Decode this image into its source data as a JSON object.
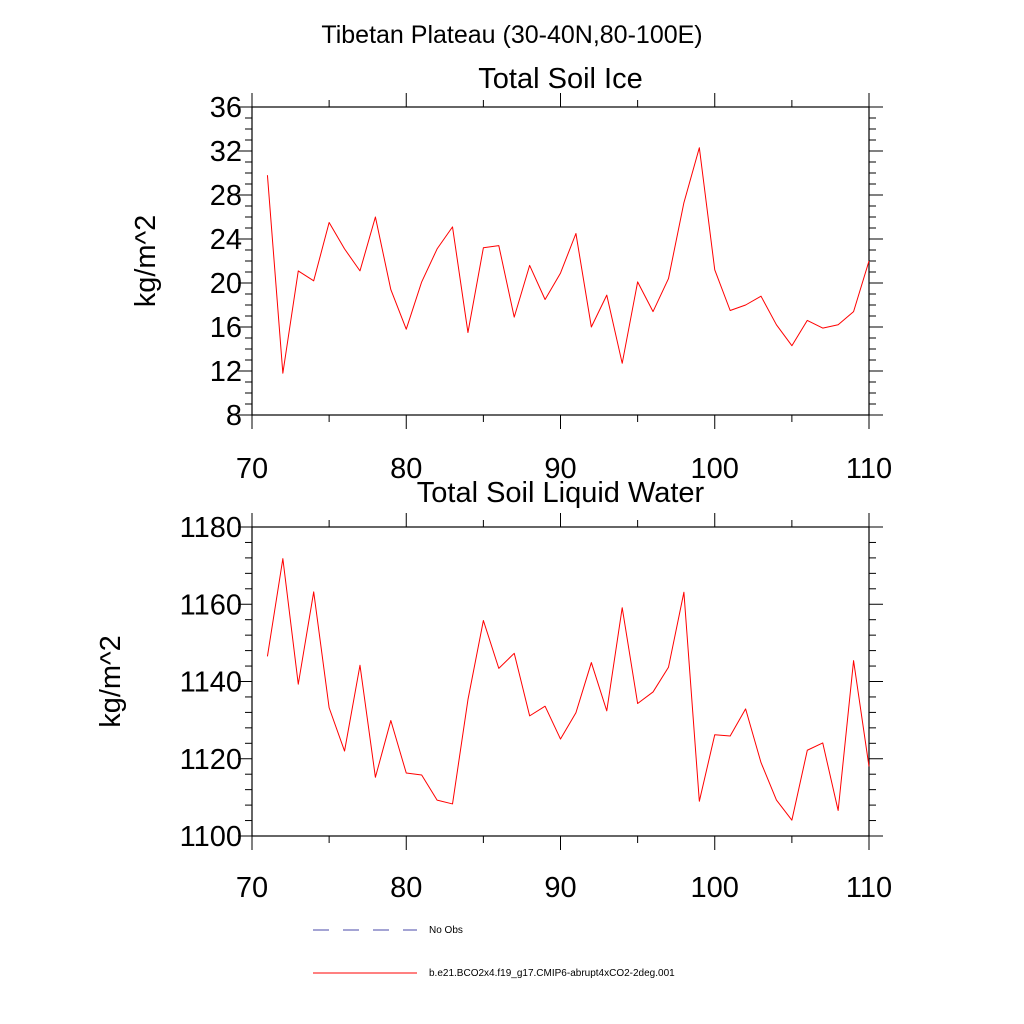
{
  "figure": {
    "title": "Tibetan Plateau (30-40N,80-100E)"
  },
  "chart_data": [
    {
      "type": "line",
      "title": "Total Soil Ice",
      "xlabel": "",
      "ylabel": "kg/m^2",
      "xlim": [
        70,
        110
      ],
      "ylim": [
        8,
        36
      ],
      "xticks": [
        70,
        80,
        90,
        100,
        110
      ],
      "yticks": [
        8,
        12,
        16,
        20,
        24,
        28,
        32,
        36
      ],
      "series": [
        {
          "name": "b.e21.BCO2x4.f19_g17.CMIP6-abrupt4xCO2-2deg.001",
          "color": "#ff0000",
          "x": [
            71,
            72,
            73,
            74,
            75,
            76,
            77,
            78,
            79,
            80,
            81,
            82,
            83,
            84,
            85,
            86,
            87,
            88,
            89,
            90,
            91,
            92,
            93,
            94,
            95,
            96,
            97,
            98,
            99,
            100,
            101,
            102,
            103,
            104,
            105,
            106,
            107,
            108,
            109,
            110
          ],
          "y": [
            29.8,
            11.8,
            21.1,
            20.2,
            25.5,
            23.1,
            21.1,
            26.0,
            19.4,
            15.8,
            20.1,
            23.1,
            25.1,
            15.5,
            23.2,
            23.4,
            16.9,
            21.6,
            18.5,
            20.9,
            24.5,
            16.0,
            18.9,
            12.7,
            20.1,
            17.4,
            20.4,
            27.3,
            32.3,
            21.2,
            17.5,
            18.0,
            18.8,
            16.2,
            14.3,
            16.6,
            15.9,
            16.2,
            17.4,
            22.0
          ]
        }
      ]
    },
    {
      "type": "line",
      "title": "Total Soil Liquid Water",
      "xlabel": "",
      "ylabel": "kg/m^2",
      "xlim": [
        70,
        110
      ],
      "ylim": [
        1100,
        1180
      ],
      "xticks": [
        70,
        80,
        90,
        100,
        110
      ],
      "yticks": [
        1100,
        1120,
        1140,
        1160,
        1180
      ],
      "series": [
        {
          "name": "b.e21.BCO2x4.f19_g17.CMIP6-abrupt4xCO2-2deg.001",
          "color": "#ff0000",
          "x": [
            71,
            72,
            73,
            74,
            75,
            76,
            77,
            78,
            79,
            80,
            81,
            82,
            83,
            84,
            85,
            86,
            87,
            88,
            89,
            90,
            91,
            92,
            93,
            94,
            95,
            96,
            97,
            98,
            99,
            100,
            101,
            102,
            103,
            104,
            105,
            106,
            107,
            108,
            109,
            110
          ],
          "y": [
            1146.5,
            1171.8,
            1139.3,
            1163.2,
            1133.2,
            1122.0,
            1144.2,
            1115.2,
            1129.9,
            1116.3,
            1115.8,
            1109.3,
            1108.3,
            1135.3,
            1155.8,
            1143.4,
            1147.3,
            1131.1,
            1133.6,
            1125.1,
            1131.9,
            1144.9,
            1132.4,
            1159.1,
            1134.3,
            1137.3,
            1143.7,
            1163.1,
            1109.0,
            1126.2,
            1125.9,
            1132.9,
            1119.0,
            1109.3,
            1104.1,
            1122.2,
            1124.1,
            1106.6,
            1145.4,
            1118.0
          ]
        }
      ]
    }
  ],
  "legend": [
    {
      "label": "No Obs",
      "color": "#4a4aa8",
      "dash": "dashed"
    },
    {
      "label": "b.e21.BCO2x4.f19_g17.CMIP6-abrupt4xCO2-2deg.001",
      "color": "#ff0000",
      "dash": "solid"
    }
  ]
}
